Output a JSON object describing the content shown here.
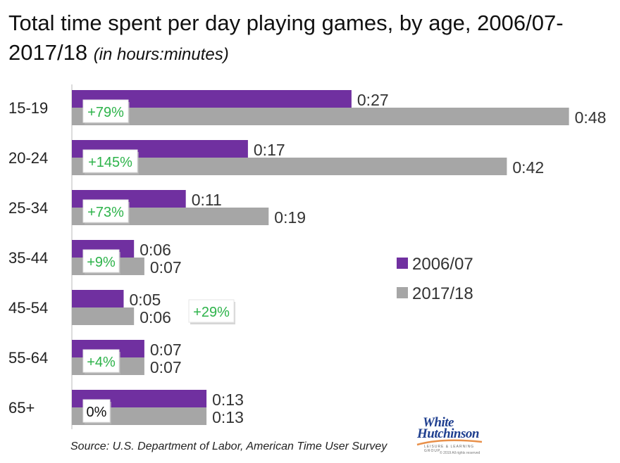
{
  "title": "Total time spent per day playing games, by age, 2006/07-2017/18",
  "subtitle": "(in hours:minutes)",
  "source": "Source: U.S. Department of Labor, American Time User Survey",
  "logo": {
    "line1": "White",
    "line2": "Hutchinson",
    "tagline": "LEISURE & LEARNING GROUP",
    "copyright": "© 2019 All rights reserved"
  },
  "colors": {
    "series_2006": "#7030a0",
    "series_2017": "#a6a6a6",
    "change_text": "#2db34a",
    "zero_change_text": "#111111"
  },
  "chart_data": {
    "type": "bar",
    "orientation": "horizontal",
    "categories": [
      "15-19",
      "20-24",
      "25-34",
      "35-44",
      "45-54",
      "55-64",
      "65+"
    ],
    "unit": "minutes",
    "series": [
      {
        "name": "2006/07",
        "values": [
          27,
          17,
          11,
          6,
          5,
          7,
          13
        ],
        "labels": [
          "0:27",
          "0:17",
          "0:11",
          "0:06",
          "0:05",
          "0:07",
          "0:13"
        ]
      },
      {
        "name": "2017/18",
        "values": [
          48,
          42,
          19,
          7,
          6,
          7,
          13
        ],
        "labels": [
          "0:48",
          "0:42",
          "0:19",
          "0:07",
          "0:06",
          "0:07",
          "0:13"
        ]
      }
    ],
    "change_labels": [
      "+79%",
      "+145%",
      "+73%",
      "+9%",
      "+29%",
      "+4%",
      "0%"
    ],
    "legend_position": "right",
    "grid": false
  }
}
